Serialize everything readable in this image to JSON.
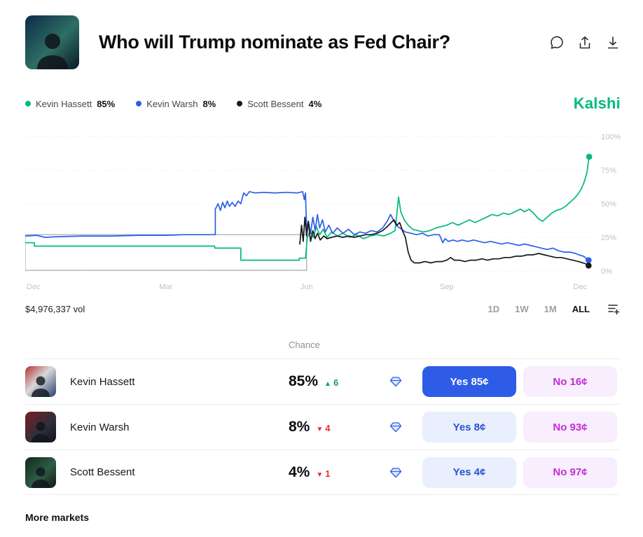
{
  "header": {
    "title": "Who will Trump nominate as Fed Chair?",
    "icons": [
      "comment-icon",
      "share-icon",
      "download-icon"
    ]
  },
  "brand": {
    "logo_text": "Kalshi",
    "color": "#00ba7c"
  },
  "legend": [
    {
      "name": "Kevin Hassett",
      "value": "85%",
      "color": "#00ba7c"
    },
    {
      "name": "Kevin Warsh",
      "value": "8%",
      "color": "#2b5fe8"
    },
    {
      "name": "Scott Bessent",
      "value": "4%",
      "color": "#16181c"
    }
  ],
  "chart_data": {
    "type": "line",
    "title": "Who will Trump nominate as Fed Chair?",
    "x_ticks": [
      "Dec",
      "Mar",
      "Jun",
      "Sep",
      "Dec"
    ],
    "x_tick_pos": [
      0,
      24.8,
      49.6,
      74.3,
      97.8
    ],
    "y_ticks": [
      "100%",
      "75%",
      "50%",
      "25%",
      "0%"
    ],
    "ylim": [
      0,
      100
    ],
    "grid": "dotted-horizontal",
    "legend_position": "top-left",
    "highlight_box": {
      "x0": 0,
      "x1": 49.6,
      "y_top": 27,
      "y_bottom": 0.5
    },
    "series": [
      {
        "name": "Kevin Hassett",
        "color": "#00ba7c",
        "points": [
          [
            0,
            21
          ],
          [
            1.6,
            21
          ],
          [
            1.6,
            18.5
          ],
          [
            8,
            18.5
          ],
          [
            24.8,
            18.5
          ],
          [
            33.4,
            18.5
          ],
          [
            33.4,
            17
          ],
          [
            38,
            17
          ],
          [
            38,
            8
          ],
          [
            44,
            8
          ],
          [
            48.3,
            8
          ],
          [
            48.3,
            9.5
          ],
          [
            49.4,
            9.5
          ],
          [
            49.7,
            24
          ],
          [
            50.2,
            30
          ],
          [
            50.8,
            25
          ],
          [
            51.3,
            33
          ],
          [
            51.9,
            27
          ],
          [
            52.5,
            31
          ],
          [
            53.2,
            25
          ],
          [
            54,
            29
          ],
          [
            55,
            26
          ],
          [
            56,
            28
          ],
          [
            57.2,
            25
          ],
          [
            58.4,
            27
          ],
          [
            59.6,
            24
          ],
          [
            60.8,
            26
          ],
          [
            62,
            27
          ],
          [
            63.2,
            26
          ],
          [
            64.4,
            28
          ],
          [
            65.2,
            30
          ],
          [
            65.8,
            55
          ],
          [
            66.2,
            44
          ],
          [
            66.8,
            38
          ],
          [
            67.5,
            34
          ],
          [
            68.3,
            31
          ],
          [
            69.2,
            30
          ],
          [
            70.2,
            29
          ],
          [
            71.3,
            30
          ],
          [
            72.4,
            32
          ],
          [
            73.4,
            33
          ],
          [
            74.3,
            34
          ],
          [
            75.3,
            36
          ],
          [
            76.3,
            34
          ],
          [
            77.3,
            36
          ],
          [
            78.3,
            38
          ],
          [
            79.3,
            36
          ],
          [
            80.3,
            38
          ],
          [
            81.3,
            40
          ],
          [
            82.3,
            42
          ],
          [
            83.3,
            41
          ],
          [
            84.3,
            43
          ],
          [
            85.3,
            42
          ],
          [
            86.3,
            44
          ],
          [
            87.3,
            46
          ],
          [
            88,
            44
          ],
          [
            88.8,
            46
          ],
          [
            89.6,
            43
          ],
          [
            90.4,
            39
          ],
          [
            91.2,
            37
          ],
          [
            92,
            40
          ],
          [
            92.8,
            43
          ],
          [
            93.6,
            45
          ],
          [
            94.4,
            46
          ],
          [
            95.2,
            48
          ],
          [
            96,
            51
          ],
          [
            96.8,
            54
          ],
          [
            97.4,
            57
          ],
          [
            98,
            61
          ],
          [
            98.5,
            66
          ],
          [
            99,
            73
          ],
          [
            99.4,
            85
          ]
        ]
      },
      {
        "name": "Kevin Warsh",
        "color": "#2b5fe8",
        "points": [
          [
            0,
            26
          ],
          [
            2,
            26.5
          ],
          [
            3.5,
            25
          ],
          [
            6,
            25.5
          ],
          [
            10,
            26
          ],
          [
            15,
            26
          ],
          [
            20,
            26.5
          ],
          [
            24.8,
            26.5
          ],
          [
            28,
            27
          ],
          [
            31,
            27
          ],
          [
            33.5,
            27
          ],
          [
            33.5,
            46
          ],
          [
            34,
            50
          ],
          [
            34.4,
            45
          ],
          [
            34.8,
            51
          ],
          [
            35.2,
            47
          ],
          [
            35.6,
            52
          ],
          [
            36,
            48
          ],
          [
            36.5,
            51
          ],
          [
            37,
            48
          ],
          [
            37.5,
            52
          ],
          [
            38,
            50
          ],
          [
            38.5,
            58
          ],
          [
            39,
            56
          ],
          [
            39.5,
            59
          ],
          [
            40.5,
            58
          ],
          [
            42,
            58.5
          ],
          [
            44,
            58
          ],
          [
            46,
            58.5
          ],
          [
            48,
            58
          ],
          [
            48.9,
            59
          ],
          [
            49.2,
            53
          ],
          [
            49.4,
            58
          ],
          [
            49.6,
            31
          ],
          [
            49.9,
            37
          ],
          [
            50.3,
            28
          ],
          [
            50.7,
            40
          ],
          [
            51.1,
            30
          ],
          [
            51.5,
            42
          ],
          [
            51.9,
            32
          ],
          [
            52.4,
            38
          ],
          [
            52.9,
            29
          ],
          [
            53.5,
            34
          ],
          [
            54.2,
            28
          ],
          [
            55,
            32
          ],
          [
            56,
            28
          ],
          [
            57,
            31
          ],
          [
            58,
            27
          ],
          [
            59,
            29
          ],
          [
            60,
            28
          ],
          [
            61,
            30
          ],
          [
            62,
            29
          ],
          [
            63,
            32
          ],
          [
            63.8,
            37
          ],
          [
            64.4,
            42
          ],
          [
            64.9,
            38
          ],
          [
            65.4,
            34
          ],
          [
            66,
            32
          ],
          [
            67,
            29
          ],
          [
            68,
            28
          ],
          [
            69,
            27
          ],
          [
            70,
            28
          ],
          [
            71,
            26
          ],
          [
            72,
            27
          ],
          [
            73,
            27
          ],
          [
            73.6,
            21
          ],
          [
            74,
            24
          ],
          [
            74.6,
            22
          ],
          [
            75.4,
            23
          ],
          [
            76.2,
            22
          ],
          [
            77,
            23
          ],
          [
            78,
            22
          ],
          [
            79,
            23
          ],
          [
            80,
            22
          ],
          [
            81,
            21
          ],
          [
            82,
            22
          ],
          [
            83,
            21
          ],
          [
            84,
            20
          ],
          [
            85,
            21
          ],
          [
            86,
            20
          ],
          [
            87,
            19
          ],
          [
            88,
            20
          ],
          [
            89,
            19
          ],
          [
            90,
            18
          ],
          [
            91,
            17
          ],
          [
            92,
            16
          ],
          [
            93,
            17
          ],
          [
            94,
            15
          ],
          [
            95,
            14
          ],
          [
            96,
            14
          ],
          [
            97,
            13
          ],
          [
            97.6,
            12
          ],
          [
            98.4,
            11
          ],
          [
            99,
            9
          ],
          [
            99.3,
            8
          ]
        ]
      },
      {
        "name": "Scott Bessent",
        "color": "#16181c",
        "points": [
          [
            48.4,
            20
          ],
          [
            48.7,
            34
          ],
          [
            49,
            22
          ],
          [
            49.3,
            40
          ],
          [
            49.6,
            26
          ],
          [
            49.9,
            37
          ],
          [
            50.3,
            22
          ],
          [
            50.7,
            30
          ],
          [
            51.1,
            24
          ],
          [
            51.5,
            28
          ],
          [
            52,
            23
          ],
          [
            52.6,
            26
          ],
          [
            53.2,
            24
          ],
          [
            54,
            25
          ],
          [
            55,
            26
          ],
          [
            56,
            25
          ],
          [
            57,
            26
          ],
          [
            58,
            25
          ],
          [
            59,
            26
          ],
          [
            60,
            27
          ],
          [
            61,
            27
          ],
          [
            62,
            28
          ],
          [
            63,
            30
          ],
          [
            63.8,
            33
          ],
          [
            64.5,
            36
          ],
          [
            65,
            38
          ],
          [
            65.5,
            34
          ],
          [
            66,
            36
          ],
          [
            66.5,
            30
          ],
          [
            67,
            25
          ],
          [
            67.5,
            14
          ],
          [
            68,
            8
          ],
          [
            68.6,
            6
          ],
          [
            69.5,
            6
          ],
          [
            70.5,
            7
          ],
          [
            71.5,
            6
          ],
          [
            72.5,
            7
          ],
          [
            73.5,
            7
          ],
          [
            74.3,
            8
          ],
          [
            75,
            10
          ],
          [
            75.6,
            8
          ],
          [
            76.5,
            8
          ],
          [
            77.5,
            7
          ],
          [
            78.5,
            8
          ],
          [
            79.5,
            8
          ],
          [
            80.5,
            9
          ],
          [
            81.5,
            8
          ],
          [
            82.5,
            9
          ],
          [
            83.5,
            9
          ],
          [
            84.5,
            10
          ],
          [
            85.5,
            10
          ],
          [
            86.5,
            11
          ],
          [
            87.5,
            11
          ],
          [
            88.5,
            12
          ],
          [
            89.5,
            12
          ],
          [
            90.5,
            13
          ],
          [
            91.5,
            12
          ],
          [
            92.5,
            11
          ],
          [
            93.5,
            10
          ],
          [
            94.5,
            10
          ],
          [
            95.5,
            9
          ],
          [
            96.5,
            8
          ],
          [
            97.5,
            7
          ],
          [
            98.3,
            6
          ],
          [
            99,
            5
          ],
          [
            99.3,
            4
          ]
        ]
      }
    ]
  },
  "volume": "$4,976,337 vol",
  "time_ranges": [
    {
      "label": "1D",
      "active": false
    },
    {
      "label": "1W",
      "active": false
    },
    {
      "label": "1M",
      "active": false
    },
    {
      "label": "ALL",
      "active": true
    }
  ],
  "table": {
    "chance_header": "Chance",
    "rows": [
      {
        "name": "Kevin Hassett",
        "chance": "85%",
        "delta_dir": "up",
        "delta": "6",
        "yes_label": "Yes 85¢",
        "no_label": "No 16¢",
        "yes_variant": "solid"
      },
      {
        "name": "Kevin Warsh",
        "chance": "8%",
        "delta_dir": "down",
        "delta": "4",
        "yes_label": "Yes 8¢",
        "no_label": "No 93¢",
        "yes_variant": "light"
      },
      {
        "name": "Scott Bessent",
        "chance": "4%",
        "delta_dir": "down",
        "delta": "1",
        "yes_label": "Yes 4¢",
        "no_label": "No 97¢",
        "yes_variant": "light"
      }
    ]
  },
  "footer": {
    "more_markets": "More markets"
  },
  "colors": {
    "brand_green": "#00ba7c",
    "yes_blue": "#2e5ce6",
    "yes_light_bg": "#e9effc",
    "no_bg": "#f8eefe",
    "no_text": "#c32ed2",
    "delta_up": "#0b9e66",
    "delta_down": "#e0342c",
    "axis_text": "#bcc2c9"
  }
}
